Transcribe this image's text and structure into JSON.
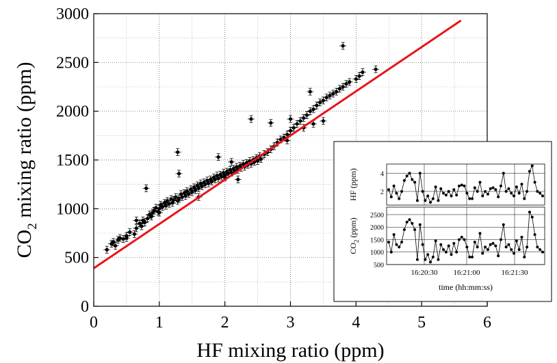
{
  "chart_data": [
    {
      "type": "scatter",
      "xlabel": "HF mixing ratio (ppm)",
      "ylabel_main": "CO",
      "ylabel_sub": "2",
      "ylabel_rest": " mixing ratio (ppm)",
      "xlim": [
        0,
        6
      ],
      "ylim": [
        0,
        3000
      ],
      "xticks": [
        0,
        1,
        2,
        3,
        4,
        5,
        6
      ],
      "yticks": [
        0,
        500,
        1000,
        1500,
        2000,
        2500,
        3000
      ],
      "grid": true,
      "fit_color": "#e8141b",
      "marker_color": "#000000",
      "fit_line": {
        "x": [
          0,
          5.6
        ],
        "y": [
          390,
          2930
        ]
      },
      "series": [
        {
          "x": [
            0.2,
            0.27,
            0.3,
            0.33,
            0.37,
            0.4,
            0.45,
            0.5,
            0.55,
            0.62,
            0.65,
            0.7,
            0.73,
            0.75,
            0.78,
            0.82,
            0.85,
            0.88,
            0.9,
            0.92,
            0.95,
            0.98,
            1.0,
            1.02,
            1.05,
            1.08,
            1.1,
            1.12,
            1.15,
            1.18,
            1.2,
            1.22,
            1.25,
            1.28,
            1.3,
            1.33,
            1.35,
            1.38,
            1.4,
            1.42,
            1.45,
            1.48,
            1.5,
            1.53,
            1.55,
            1.58,
            1.6,
            1.63,
            1.65,
            1.68,
            1.7,
            1.73,
            1.75,
            1.78,
            1.8,
            1.83,
            1.85,
            1.88,
            1.9,
            1.93,
            1.95,
            1.98,
            2.0,
            2.03,
            2.05,
            2.08,
            2.1,
            2.13,
            2.15,
            2.18,
            2.2,
            2.23,
            2.25,
            2.28,
            2.3,
            2.33,
            2.35,
            2.38,
            2.4,
            2.43,
            2.45,
            2.48,
            2.5,
            2.53,
            2.55,
            2.6,
            2.65,
            2.7,
            2.75,
            2.8,
            2.85,
            2.9,
            2.95,
            3.0,
            3.05,
            3.1,
            3.15,
            3.2,
            3.25,
            3.3,
            3.35,
            3.4,
            3.45,
            3.5,
            3.55,
            3.6,
            3.65,
            3.7,
            3.75,
            3.8,
            3.85,
            3.9,
            4.0,
            4.05,
            4.1,
            4.3,
            1.28,
            1.3,
            0.8,
            0.65,
            1.9,
            2.0,
            2.1,
            2.4,
            2.7,
            3.0,
            3.3,
            3.5,
            3.8,
            3.35,
            3.0,
            2.2,
            1.6,
            1.0,
            0.5,
            2.95,
            2.6,
            3.2
          ],
          "y": [
            580,
            640,
            660,
            620,
            680,
            700,
            690,
            720,
            760,
            740,
            800,
            850,
            820,
            880,
            860,
            900,
            940,
            920,
            960,
            980,
            1010,
            970,
            1000,
            1040,
            1020,
            1060,
            1030,
            1080,
            1050,
            1100,
            1060,
            1090,
            1120,
            1080,
            1100,
            1150,
            1120,
            1160,
            1130,
            1180,
            1150,
            1200,
            1170,
            1220,
            1190,
            1240,
            1210,
            1260,
            1230,
            1270,
            1250,
            1290,
            1260,
            1300,
            1280,
            1320,
            1300,
            1340,
            1310,
            1350,
            1330,
            1370,
            1340,
            1380,
            1360,
            1400,
            1370,
            1410,
            1390,
            1430,
            1400,
            1440,
            1420,
            1460,
            1430,
            1470,
            1450,
            1490,
            1460,
            1500,
            1480,
            1520,
            1490,
            1540,
            1510,
            1560,
            1580,
            1610,
            1640,
            1680,
            1710,
            1730,
            1760,
            1800,
            1830,
            1870,
            1900,
            1930,
            1960,
            2000,
            2020,
            2060,
            2090,
            2110,
            2140,
            2160,
            2180,
            2200,
            2230,
            2250,
            2280,
            2300,
            2330,
            2360,
            2400,
            2430,
            1580,
            1360,
            1210,
            880,
            1530,
            1320,
            1480,
            1920,
            1880,
            1920,
            2200,
            1900,
            2670,
            1870,
            1800,
            1300,
            1120,
            960,
            700,
            1700,
            1560,
            1830
          ]
        }
      ]
    },
    {
      "type": "line",
      "xlabel": "time (hh:mm:ss)",
      "xticks": [
        "16:20:30",
        "16:21:00",
        "16:21:30"
      ],
      "panels": [
        {
          "ylabel": "HF (ppm)",
          "ylim": [
            0.5,
            5
          ],
          "yticks": [
            2,
            4
          ],
          "values": [
            2.2,
            1.4,
            2.6,
            1.8,
            1.2,
            2.0,
            3.2,
            3.7,
            4.0,
            3.3,
            3.0,
            1.0,
            4.0,
            2.0,
            1.0,
            1.5,
            0.8,
            1.2,
            2.5,
            1.0,
            2.3,
            1.8,
            1.6,
            2.0,
            1.5,
            2.2,
            1.6,
            2.6,
            2.7,
            2.6,
            1.8,
            1.2,
            1.2,
            2.4,
            2.0,
            3.0,
            1.5,
            2.0,
            1.7,
            2.3,
            2.4,
            2.2,
            1.4,
            2.6,
            4.0,
            2.0,
            2.3,
            1.8,
            1.5,
            2.5,
            1.8,
            2.8,
            1.2,
            2.0,
            4.2,
            4.8,
            3.0,
            2.0,
            1.8,
            1.5
          ]
        },
        {
          "ylabel_main": "CO",
          "ylabel_sub": "2",
          "ylabel_rest": " (ppm)",
          "ylim": [
            500,
            2800
          ],
          "yticks": [
            500,
            1000,
            1500,
            2000,
            2500
          ],
          "values": [
            1400,
            1000,
            1700,
            1300,
            1200,
            1400,
            1900,
            2200,
            2300,
            2150,
            1900,
            700,
            2100,
            1300,
            700,
            900,
            600,
            800,
            1450,
            700,
            1300,
            1100,
            1000,
            1250,
            900,
            1350,
            1000,
            1500,
            1600,
            1500,
            1200,
            800,
            800,
            1400,
            1200,
            1750,
            950,
            1200,
            1100,
            1300,
            1350,
            1250,
            850,
            1500,
            2100,
            1200,
            1300,
            1100,
            950,
            1450,
            1100,
            1600,
            800,
            1200,
            2600,
            2400,
            1700,
            1200,
            1100,
            1000
          ]
        }
      ]
    }
  ]
}
